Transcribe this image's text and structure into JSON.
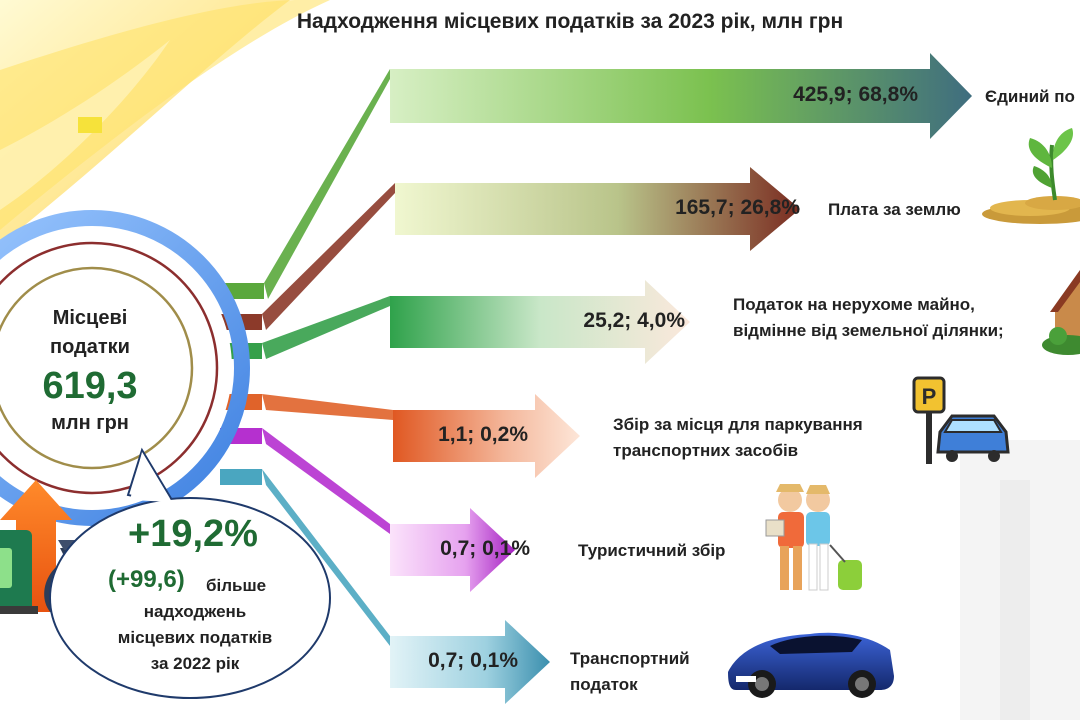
{
  "title": "Надходження місцевих податків за 2023 рік, млн грн",
  "hub": {
    "line1": "Місцеві",
    "line2": "податки",
    "value": "619,3",
    "unit": "млн грн"
  },
  "growth": {
    "percent": "+19,2%",
    "absolute": "(+99,6)",
    "line1": "більше",
    "line2": "надходжень",
    "line3": "місцевих податків",
    "line4": "за 2022 рік"
  },
  "chart_data": {
    "type": "bar",
    "categories": [
      "Єдиний податок",
      "Плата за землю",
      "Податок на нерухоме майно, відмінне від земельної ділянки;",
      "Збір за місця для паркування транспортних засобів",
      "Туристичний збір",
      "Транспортний податок"
    ],
    "values": [
      425.9,
      165.7,
      25.2,
      1.1,
      0.7,
      0.7
    ],
    "shares_percent": [
      68.8,
      26.8,
      4.0,
      0.2,
      0.1,
      0.1
    ],
    "value_labels": [
      "425,9; 68,8%",
      "165,7; 26,8%",
      "25,2; 4,0%",
      "1,1; 0,2%",
      "0,7; 0,1%",
      "0,7; 0,1%"
    ],
    "labels_display": [
      [
        "Єдиний по"
      ],
      [
        "Плата за землю"
      ],
      [
        "Податок на нерухоме майно,",
        "відмінне від земельної ділянки;"
      ],
      [
        "Збір за місця для паркування",
        "транспортних засобів"
      ],
      [
        "Туристичний збір"
      ],
      [
        "Транспортний",
        "податок"
      ]
    ],
    "colors": [
      "#5aa83c",
      "#8c3a2a",
      "#35a04a",
      "#e0632a",
      "#b530cf",
      "#4aa6c0"
    ],
    "icons": [
      "",
      "plant-coins-icon",
      "house-icon",
      "parking-car-icon",
      "tourists-icon",
      "sports-car-icon"
    ]
  },
  "decor": {
    "parking_sign_letter": "P",
    "money_bag_symbol": "$"
  }
}
